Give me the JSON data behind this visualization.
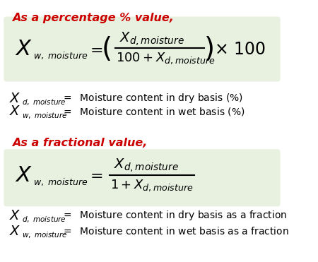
{
  "bg_color": "#ffffff",
  "green_box_color": "#e8f0e0",
  "red_color": "#cc0000",
  "black_color": "#000000",
  "heading1": "As a percentage % value,",
  "heading2": "As a fractional value,",
  "figsize": [
    4.5,
    3.71
  ],
  "dpi": 100
}
